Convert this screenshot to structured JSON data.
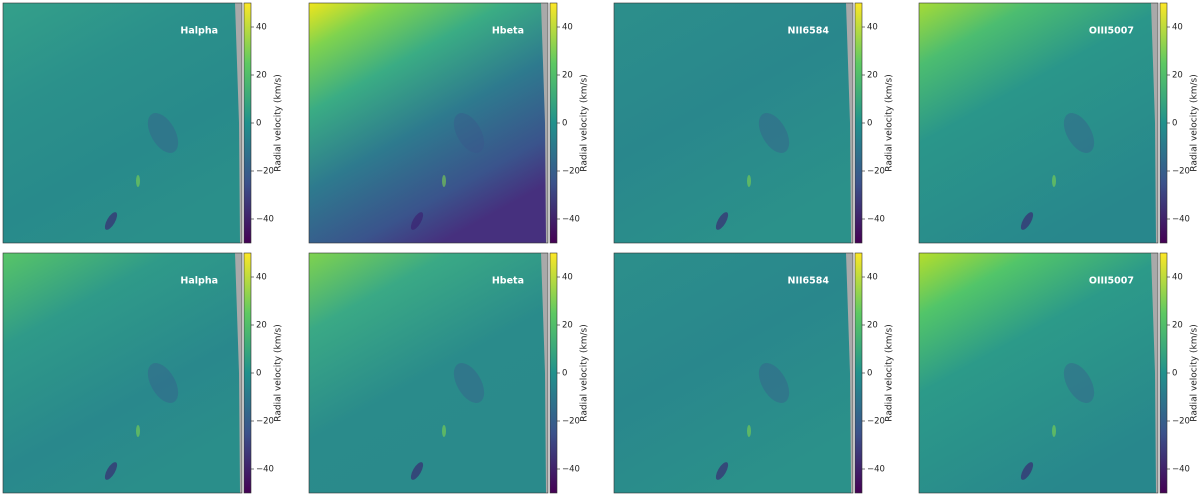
{
  "chart_data": [
    {
      "type": "image",
      "label": "Halpha",
      "colorbar_label": "Radial velocity (km/s)",
      "cmap": "viridis",
      "clim": [
        -50,
        50
      ],
      "cticks": [
        {
          "value": -40,
          "label": "−40"
        },
        {
          "value": -20,
          "label": "−20"
        },
        0,
        20,
        40
      ]
    },
    {
      "type": "image",
      "label": "Hbeta",
      "colorbar_label": "Radial velocity (km/s)",
      "cmap": "viridis",
      "clim": [
        -50,
        50
      ],
      "cticks": [
        {
          "value": -40,
          "label": "−40"
        },
        {
          "value": -20,
          "label": "−20"
        },
        0,
        20,
        40
      ]
    },
    {
      "type": "image",
      "label": "NII6584",
      "colorbar_label": "Radial velocity (km/s)",
      "cmap": "viridis",
      "clim": [
        -50,
        50
      ],
      "cticks": [
        {
          "value": -40,
          "label": "−40"
        },
        {
          "value": -20,
          "label": "−20"
        },
        0,
        20,
        40
      ]
    },
    {
      "type": "image",
      "label": "OIII5007",
      "colorbar_label": "Radial velocity (km/s)",
      "cmap": "viridis",
      "clim": [
        -50,
        50
      ],
      "cticks": [
        {
          "value": -40,
          "label": "−40"
        },
        {
          "value": -20,
          "label": "−20"
        },
        0,
        20,
        40
      ]
    },
    {
      "type": "image",
      "label": "Halpha",
      "colorbar_label": "Radial velocity (km/s)",
      "cmap": "viridis",
      "clim": [
        -50,
        50
      ],
      "cticks": [
        {
          "value": -40,
          "label": "−40"
        },
        {
          "value": -20,
          "label": "−20"
        },
        0,
        20,
        40
      ]
    },
    {
      "type": "image",
      "label": "Hbeta",
      "colorbar_label": "Radial velocity (km/s)",
      "cmap": "viridis",
      "clim": [
        -50,
        50
      ],
      "cticks": [
        {
          "value": -40,
          "label": "−40"
        },
        {
          "value": -20,
          "label": "−20"
        },
        0,
        20,
        40
      ]
    },
    {
      "type": "image",
      "label": "NII6584",
      "colorbar_label": "Radial velocity (km/s)",
      "cmap": "viridis",
      "clim": [
        -50,
        50
      ],
      "cticks": [
        {
          "value": -40,
          "label": "−40"
        },
        {
          "value": -20,
          "label": "−20"
        },
        0,
        20,
        40
      ]
    },
    {
      "type": "image",
      "label": "OIII5007",
      "colorbar_label": "Radial velocity (km/s)",
      "cmap": "viridis",
      "clim": [
        -50,
        50
      ],
      "cticks": [
        {
          "value": -40,
          "label": "−40"
        },
        {
          "value": -20,
          "label": "−20"
        },
        0,
        20,
        40
      ]
    }
  ]
}
